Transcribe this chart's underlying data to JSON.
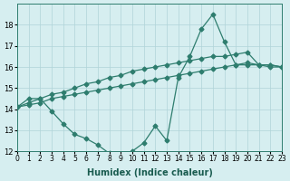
{
  "xlabel": "Humidex (Indice chaleur)",
  "ylabel": "",
  "bg_color": "#d6eef0",
  "grid_color": "#b0d4d8",
  "line_color": "#2e7d6e",
  "xlim": [
    0,
    23
  ],
  "ylim": [
    12,
    19
  ],
  "yticks": [
    12,
    13,
    14,
    15,
    16,
    17,
    18
  ],
  "xticks": [
    0,
    1,
    2,
    3,
    4,
    5,
    6,
    7,
    8,
    9,
    10,
    11,
    12,
    13,
    14,
    15,
    16,
    17,
    18,
    19,
    20,
    21,
    22,
    23
  ],
  "line1_x": [
    0,
    1,
    2,
    3,
    4,
    5,
    6,
    7,
    8,
    9,
    10,
    11,
    12,
    13,
    14,
    15,
    16,
    17,
    18,
    19,
    20,
    21,
    22,
    23
  ],
  "line1_y": [
    14.1,
    14.5,
    14.5,
    13.9,
    13.3,
    12.8,
    12.6,
    12.3,
    11.9,
    11.8,
    12.0,
    12.4,
    13.2,
    12.5,
    15.5,
    16.5,
    17.8,
    18.5,
    17.2,
    16.1,
    16.1,
    16.1,
    16.1,
    16.0
  ],
  "line2_x": [
    0,
    1,
    2,
    3,
    4,
    5,
    6,
    7,
    8,
    9,
    10,
    11,
    12,
    13,
    14,
    15,
    16,
    17,
    18,
    19,
    20,
    21,
    22,
    23
  ],
  "line2_y": [
    14.1,
    14.3,
    14.5,
    14.7,
    14.8,
    15.0,
    15.2,
    15.3,
    15.5,
    15.6,
    15.8,
    15.9,
    16.0,
    16.1,
    16.2,
    16.3,
    16.4,
    16.5,
    16.5,
    16.6,
    16.7,
    16.1,
    16.0,
    16.0
  ],
  "line3_x": [
    0,
    1,
    2,
    3,
    4,
    5,
    6,
    7,
    8,
    9,
    10,
    11,
    12,
    13,
    14,
    15,
    16,
    17,
    18,
    19,
    20,
    21,
    22,
    23
  ],
  "line3_y": [
    14.1,
    14.2,
    14.3,
    14.5,
    14.6,
    14.7,
    14.8,
    14.9,
    15.0,
    15.1,
    15.2,
    15.3,
    15.4,
    15.5,
    15.6,
    15.7,
    15.8,
    15.9,
    16.0,
    16.1,
    16.2,
    16.1,
    16.1,
    16.0
  ]
}
